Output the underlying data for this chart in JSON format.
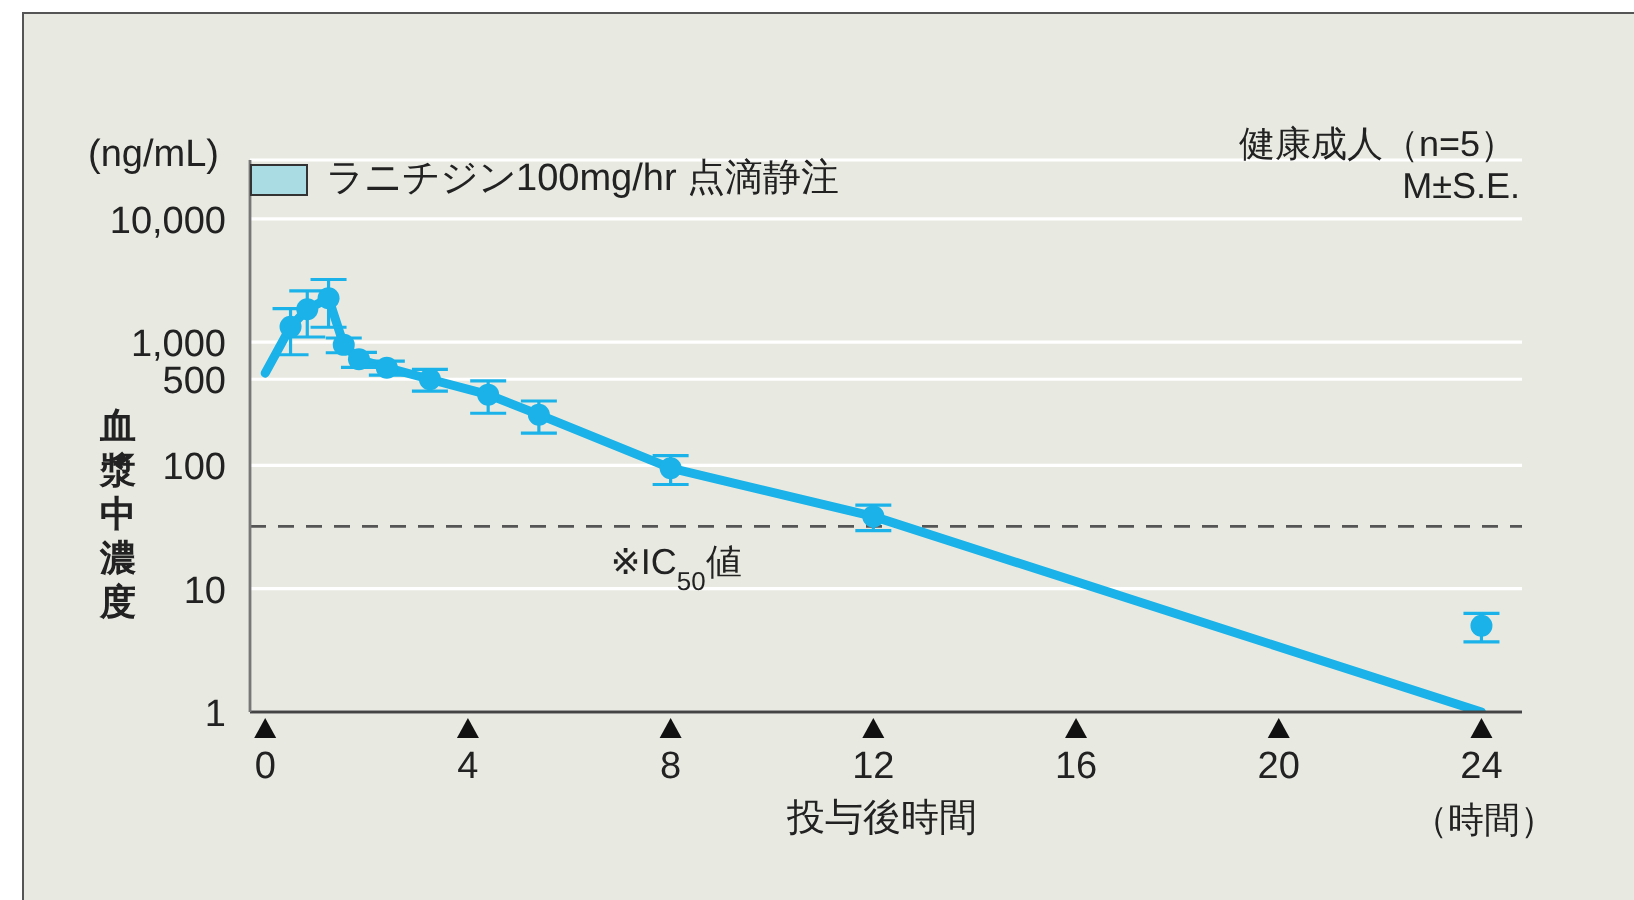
{
  "chart_data": {
    "type": "scatter",
    "xlabel": "投与後時間",
    "ylabel": "血漿中濃度",
    "annotations": [
      "(ng/mL)",
      "（時間）",
      "健康成人（n=5）",
      "M±S.E.",
      "ラニチジン100mg/hr 点滴静注"
    ],
    "xlim": [
      -0.3,
      24.8
    ],
    "xticks": [
      0,
      4,
      8,
      12,
      16,
      20,
      24
    ],
    "ylim": [
      1,
      30000
    ],
    "yticks": [
      1,
      10,
      100,
      500,
      {
        "value": 1000,
        "label": "1,000"
      },
      {
        "value": 10000,
        "label": "10,000"
      }
    ],
    "log": true,
    "grid": "y",
    "ref_lines": [
      {
        "axis": "y",
        "value": 32,
        "label": "※IC$_{50}$値",
        "color": "#555555",
        "line_style": "dashed"
      }
    ],
    "series": [
      {
        "type": "line",
        "x": [
          0,
          0.5,
          0.83,
          1.25,
          1.55,
          1.85,
          2.4,
          3.25,
          4.4,
          5.4,
          8,
          12,
          24
        ],
        "values": [
          560,
          1330,
          1850,
          2270,
          950,
          725,
          620,
          500,
          375,
          258,
          95,
          38.6,
          1
        ],
        "color": "#1ab2e8",
        "marker": "none",
        "line_style": "solid"
      },
      {
        "x": [
          0.5,
          0.83,
          1.25,
          1.55,
          1.85,
          2.4,
          3.25,
          4.4,
          5.4,
          8,
          12,
          24
        ],
        "values": [
          1330,
          1850,
          2270,
          950,
          725,
          620,
          500,
          375,
          258,
          95,
          38.6,
          5
        ],
        "errors": [
          540,
          750,
          950,
          130,
          100,
          80,
          100,
          110,
          75,
          25,
          9,
          1.3
        ],
        "color": "#1ab2e8",
        "marker": "circle"
      }
    ]
  }
}
